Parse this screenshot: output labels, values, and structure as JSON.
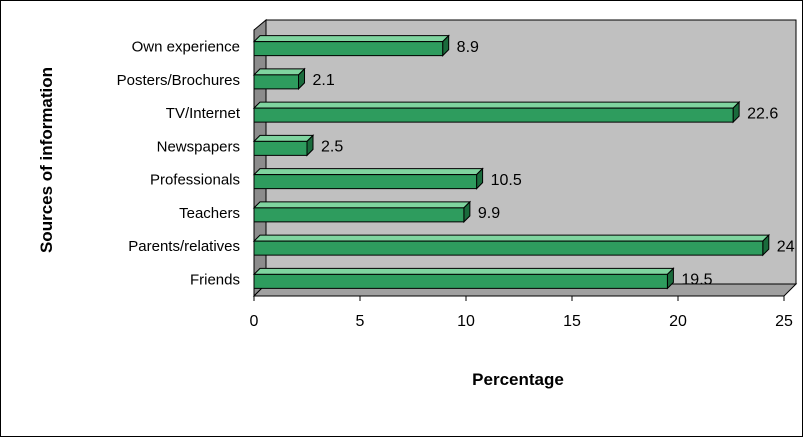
{
  "chart_data": {
    "type": "bar",
    "orientation": "horizontal",
    "title": "",
    "xlabel": "Percentage",
    "ylabel": "Sources of information",
    "xlim": [
      0,
      25
    ],
    "x_ticks": [
      "0",
      "5",
      "10",
      "15",
      "20",
      "25"
    ],
    "grid": false,
    "legend": "none",
    "categories": [
      "Own experience",
      "Posters/Brochures",
      "TV/Internet",
      "Newspapers",
      "Professionals",
      "Teachers",
      "Parents/relatives",
      "Friends"
    ],
    "values": [
      8.9,
      2.1,
      22.6,
      2.5,
      10.5,
      9.9,
      24,
      19.5
    ],
    "value_labels": [
      "8.9",
      "2.1",
      "22.6",
      "2.5",
      "10.5",
      "9.9",
      "24",
      "19.5"
    ],
    "colors": {
      "bar_front": "#2e9c5e",
      "bar_top": "#7fd49f",
      "bar_side": "#1a6b3c",
      "plot_back": "#c0c0c0",
      "plot_side": "#8c8c8c",
      "plot_floor": "#a0a0a0"
    }
  }
}
